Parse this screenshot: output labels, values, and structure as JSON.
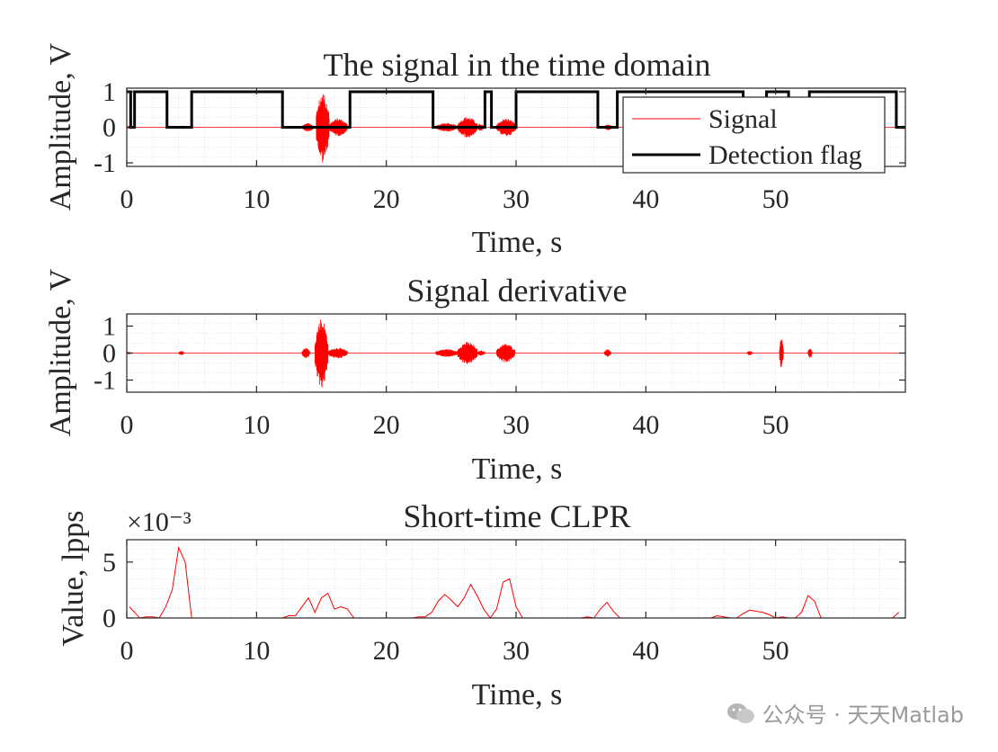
{
  "watermark": {
    "text": "公众号 · 天天Matlab"
  },
  "colors": {
    "signal": "#ff0000",
    "flag": "#000000",
    "axis": "#262626",
    "grid": "#cfcfcf"
  },
  "chart_data": [
    {
      "type": "line",
      "title": "The signal in the time domain",
      "xlabel": "Time, s",
      "ylabel": "Amplitude, V",
      "xlim": [
        0,
        60
      ],
      "ylim": [
        -1.1,
        1.1
      ],
      "xticks": [
        0,
        10,
        20,
        30,
        40,
        50
      ],
      "yticks": [
        -1,
        0,
        1
      ],
      "grid": true,
      "legend_position": "top-right",
      "series": [
        {
          "name": "Signal",
          "style": "bursts",
          "baseline": 0,
          "bursts": [
            {
              "start": 0.0,
              "end": 0.6,
              "amp": 0.05
            },
            {
              "start": 4.2,
              "end": 4.6,
              "amp": 0.05
            },
            {
              "start": 13.5,
              "end": 14.4,
              "amp": 0.12
            },
            {
              "start": 14.6,
              "end": 15.6,
              "amp": 1.0
            },
            {
              "start": 15.6,
              "end": 17.0,
              "amp": 0.25
            },
            {
              "start": 23.8,
              "end": 25.5,
              "amp": 0.12
            },
            {
              "start": 25.5,
              "end": 27.0,
              "amp": 0.3
            },
            {
              "start": 27.0,
              "end": 27.5,
              "amp": 0.1
            },
            {
              "start": 28.5,
              "end": 30.0,
              "amp": 0.25
            },
            {
              "start": 36.8,
              "end": 37.4,
              "amp": 0.08
            },
            {
              "start": 48.0,
              "end": 48.3,
              "amp": 0.06
            },
            {
              "start": 50.4,
              "end": 50.7,
              "amp": 0.12
            },
            {
              "start": 52.5,
              "end": 52.8,
              "amp": 0.08
            },
            {
              "start": 59.6,
              "end": 60.0,
              "amp": 0.05
            }
          ]
        },
        {
          "name": "Detection flag",
          "style": "step",
          "x": [
            0,
            0.3,
            0.3,
            0.6,
            0.6,
            3.1,
            3.1,
            5.0,
            5.0,
            12.0,
            12.0,
            17.2,
            17.2,
            23.6,
            23.6,
            27.6,
            27.6,
            28.1,
            28.1,
            30.0,
            30.0,
            36.3,
            36.3,
            37.8,
            37.8,
            47.5,
            47.5,
            49.3,
            49.3,
            51.0,
            51.0,
            52.6,
            52.6,
            59.3,
            59.3,
            60.0
          ],
          "y": [
            1,
            1,
            0,
            0,
            1,
            1,
            0,
            0,
            1,
            1,
            0,
            0,
            1,
            1,
            0,
            0,
            1,
            1,
            0,
            0,
            1,
            1,
            0,
            0,
            1,
            1,
            0,
            0,
            1,
            1,
            0,
            0,
            1,
            1,
            0,
            0
          ]
        }
      ]
    },
    {
      "type": "line",
      "title": "Signal derivative",
      "xlabel": "Time, s",
      "ylabel": "Amplitude, V",
      "xlim": [
        0,
        60
      ],
      "ylim": [
        -1.45,
        1.45
      ],
      "xticks": [
        0,
        10,
        20,
        30,
        40,
        50
      ],
      "yticks": [
        -1,
        0,
        1
      ],
      "grid": true,
      "series": [
        {
          "style": "bursts",
          "baseline": 0,
          "bursts": [
            {
              "start": 0.0,
              "end": 0.3,
              "amp": 0.05
            },
            {
              "start": 4.0,
              "end": 4.4,
              "amp": 0.08
            },
            {
              "start": 13.5,
              "end": 14.1,
              "amp": 0.2
            },
            {
              "start": 14.5,
              "end": 15.5,
              "amp": 1.3
            },
            {
              "start": 15.5,
              "end": 17.0,
              "amp": 0.2
            },
            {
              "start": 23.8,
              "end": 25.5,
              "amp": 0.15
            },
            {
              "start": 25.5,
              "end": 27.0,
              "amp": 0.42
            },
            {
              "start": 27.0,
              "end": 27.6,
              "amp": 0.1
            },
            {
              "start": 28.5,
              "end": 29.9,
              "amp": 0.35
            },
            {
              "start": 36.8,
              "end": 37.3,
              "amp": 0.15
            },
            {
              "start": 47.8,
              "end": 48.2,
              "amp": 0.08
            },
            {
              "start": 50.3,
              "end": 50.6,
              "amp": 0.55
            },
            {
              "start": 52.5,
              "end": 52.8,
              "amp": 0.2
            }
          ]
        }
      ]
    },
    {
      "type": "line",
      "title": "Short-time CLPR",
      "xlabel": "Time, s",
      "ylabel": "Value, lpps",
      "scale_exponent": "×10⁻³",
      "xlim": [
        0,
        60
      ],
      "ylim": [
        0,
        7.0
      ],
      "xticks": [
        0,
        10,
        20,
        30,
        40,
        50
      ],
      "yticks": [
        0,
        5
      ],
      "grid": true,
      "series": [
        {
          "style": "line",
          "x": [
            0.2,
            1.0,
            1.5,
            2.0,
            2.5,
            3.0,
            3.5,
            4.0,
            4.5,
            5.0,
            5.5,
            6.0,
            10.0,
            12.0,
            12.5,
            13.0,
            13.5,
            14.0,
            14.5,
            15.0,
            15.5,
            16.0,
            16.5,
            17.0,
            17.5,
            18.0,
            22.0,
            22.5,
            23.0,
            23.5,
            24.0,
            24.5,
            25.0,
            25.5,
            26.0,
            26.5,
            27.0,
            27.5,
            28.0,
            28.5,
            29.0,
            29.5,
            30.0,
            30.5,
            31.0,
            35.0,
            35.5,
            36.0,
            36.5,
            37.0,
            37.5,
            38.0,
            38.5,
            45.0,
            45.5,
            46.0,
            46.5,
            47.0,
            47.5,
            48.0,
            48.5,
            49.0,
            49.5,
            50.0,
            50.5,
            51.0,
            51.5,
            52.0,
            52.5,
            53.0,
            53.5,
            54.0,
            58.0,
            59.0,
            59.5
          ],
          "y": [
            1.0,
            0.0,
            0.1,
            0.1,
            0.0,
            1.0,
            2.5,
            6.3,
            5.0,
            0.0,
            0.0,
            0.0,
            0.0,
            0.0,
            0.2,
            0.2,
            1.0,
            1.8,
            0.5,
            1.8,
            2.2,
            0.8,
            1.0,
            0.8,
            0.0,
            0.0,
            0.0,
            0.1,
            0.1,
            0.5,
            1.5,
            2.1,
            1.6,
            1.0,
            1.8,
            3.0,
            2.0,
            0.8,
            0.0,
            0.8,
            3.2,
            3.5,
            1.0,
            0.0,
            0.0,
            0.0,
            0.1,
            0.0,
            0.8,
            1.4,
            0.6,
            0.0,
            0.0,
            0.0,
            0.2,
            0.1,
            0.0,
            0.0,
            0.4,
            0.7,
            0.6,
            0.5,
            0.3,
            0.0,
            0.1,
            0.0,
            0.0,
            0.5,
            2.0,
            1.5,
            0.0,
            0.0,
            0.0,
            0.0,
            0.5
          ]
        }
      ]
    }
  ]
}
